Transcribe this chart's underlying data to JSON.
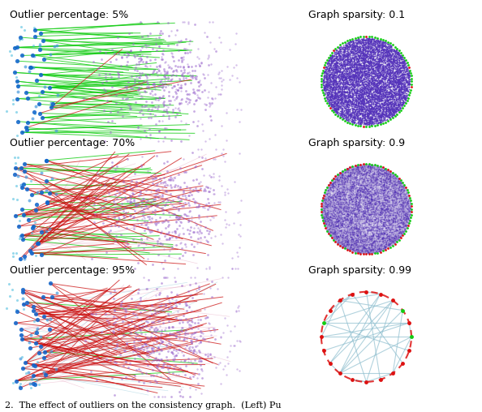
{
  "left_titles": [
    "Outlier percentage: 5%",
    "Outlier percentage: 70%",
    "Outlier percentage: 95%"
  ],
  "right_titles": [
    "Graph sparsity: 0.1",
    "Graph sparsity: 0.9",
    "Graph sparsity: 0.99"
  ],
  "outlier_pcts": [
    0.05,
    0.7,
    0.95
  ],
  "sparsities": [
    0.1,
    0.9,
    0.99
  ],
  "node_blue_dark": "#1166cc",
  "node_blue_mid": "#4499dd",
  "node_cyan": "#44bbdd",
  "node_purple": "#9966cc",
  "node_purple_dark": "#6633aa",
  "edge_green": "#11cc11",
  "edge_red": "#cc1111",
  "edge_pink": "#dd88aa",
  "edge_cyan_light": "#99ccdd",
  "circle_green": "#11cc11",
  "circle_red": "#dd1111",
  "circle_purple_fill": "#5533bb",
  "circle_edge_dense": "#5533bb",
  "circle_edge_sparse": "#88bbcc",
  "bg": "#ffffff",
  "title_fs": 9,
  "caption_fs": 8,
  "seed": 7
}
